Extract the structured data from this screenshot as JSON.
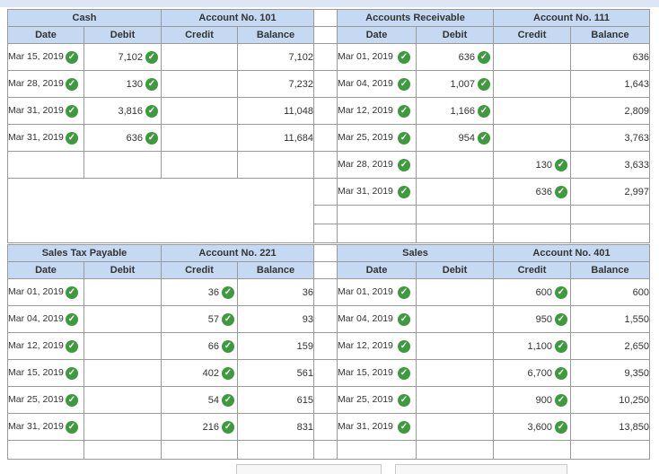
{
  "cash": {
    "name": "Cash",
    "account_no": "Account No. 101",
    "columns": [
      "Date",
      "Debit",
      "Credit",
      "Balance"
    ],
    "rows": [
      {
        "date": "Mar 15, 2019",
        "debit": "7,102",
        "credit": "",
        "balance": "7,102"
      },
      {
        "date": "Mar 28, 2019",
        "debit": "130",
        "credit": "",
        "balance": "7,232"
      },
      {
        "date": "Mar 31, 2019",
        "debit": "3,816",
        "credit": "",
        "balance": "11,048"
      },
      {
        "date": "Mar 31, 2019",
        "debit": "636",
        "credit": "",
        "balance": "11,684"
      }
    ]
  },
  "accounts_receivable": {
    "name": "Accounts Receivable",
    "account_no": "Account No. 111",
    "columns": [
      "Date",
      "Debit",
      "Credit",
      "Balance"
    ],
    "rows": [
      {
        "date": "Mar 01, 2019",
        "debit": "636",
        "credit": "",
        "balance": "636"
      },
      {
        "date": "Mar 04, 2019",
        "debit": "1,007",
        "credit": "",
        "balance": "1,643"
      },
      {
        "date": "Mar 12, 2019",
        "debit": "1,166",
        "credit": "",
        "balance": "2,809"
      },
      {
        "date": "Mar 25, 2019",
        "debit": "954",
        "credit": "",
        "balance": "3,763"
      },
      {
        "date": "Mar 28, 2019",
        "debit": "",
        "credit": "130",
        "balance": "3,633"
      },
      {
        "date": "Mar 31, 2019",
        "debit": "",
        "credit": "636",
        "balance": "2,997"
      }
    ]
  },
  "sales_tax_payable": {
    "name": "Sales Tax Payable",
    "account_no": "Account No. 221",
    "columns": [
      "Date",
      "Debit",
      "Credit",
      "Balance"
    ],
    "rows": [
      {
        "date": "Mar 01, 2019",
        "debit": "",
        "credit": "36",
        "balance": "36"
      },
      {
        "date": "Mar 04, 2019",
        "debit": "",
        "credit": "57",
        "balance": "93"
      },
      {
        "date": "Mar 12, 2019",
        "debit": "",
        "credit": "66",
        "balance": "159"
      },
      {
        "date": "Mar 15, 2019",
        "debit": "",
        "credit": "402",
        "balance": "561"
      },
      {
        "date": "Mar 25, 2019",
        "debit": "",
        "credit": "54",
        "balance": "615"
      },
      {
        "date": "Mar 31, 2019",
        "debit": "",
        "credit": "216",
        "balance": "831"
      }
    ]
  },
  "sales": {
    "name": "Sales",
    "account_no": "Account No. 401",
    "columns": [
      "Date",
      "Debit",
      "Credit",
      "Balance"
    ],
    "rows": [
      {
        "date": "Mar 01, 2019",
        "debit": "",
        "credit": "600",
        "balance": "600"
      },
      {
        "date": "Mar 04, 2019",
        "debit": "",
        "credit": "950",
        "balance": "1,550"
      },
      {
        "date": "Mar 12, 2019",
        "debit": "",
        "credit": "1,100",
        "balance": "2,650"
      },
      {
        "date": "Mar 15, 2019",
        "debit": "",
        "credit": "6,700",
        "balance": "9,350"
      },
      {
        "date": "Mar 25, 2019",
        "debit": "",
        "credit": "900",
        "balance": "10,250"
      },
      {
        "date": "Mar 31, 2019",
        "debit": "",
        "credit": "3,600",
        "balance": "13,850"
      }
    ]
  },
  "icons": {
    "check": "check-circle-icon"
  },
  "colors": {
    "header_bg": "#c5daf2",
    "check": "#3d9b3d",
    "border": "#9a9a9a"
  }
}
